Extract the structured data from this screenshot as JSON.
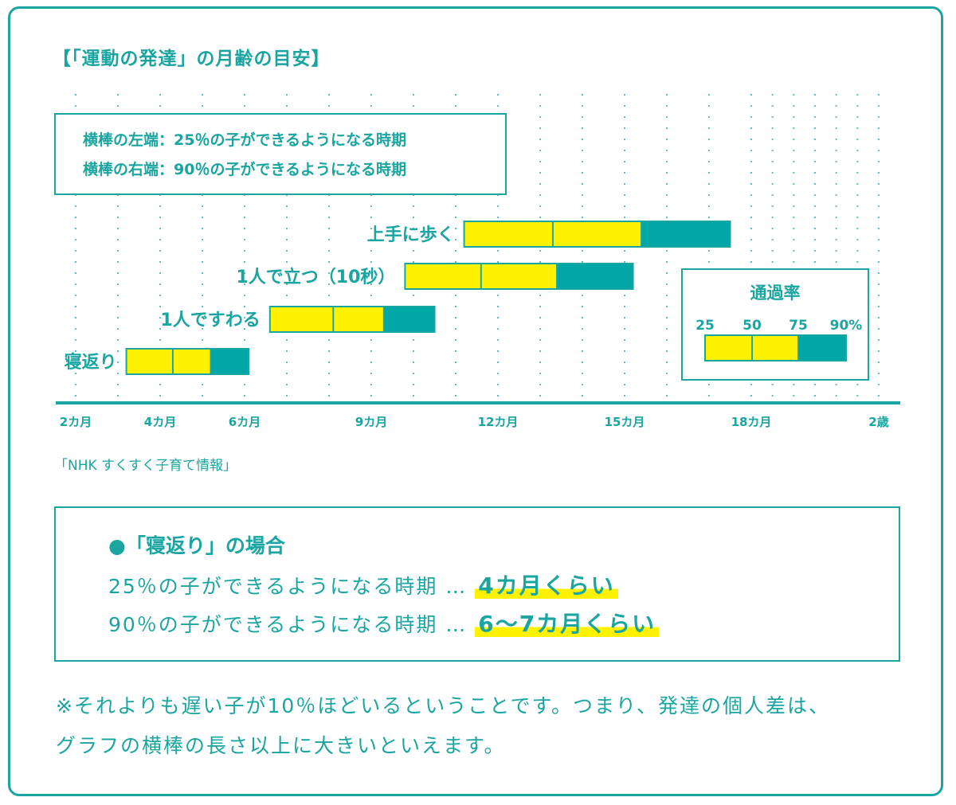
{
  "title": "【「運動の発達」の月齢の目安】",
  "explain_box": {
    "line1": "横棒の左端：25％の子ができるようになる時期",
    "line2": "横棒の右端：90％の子ができるようになる時期"
  },
  "source": "「NHK すくすく子育て情報」",
  "example": {
    "heading": "●「寝返り」の場合",
    "line1_text": "25％の子ができるようになる時期 …",
    "line1_value": "4カ月くらい",
    "line2_text": "90％の子ができるようになる時期 …",
    "line2_value": "6〜7カ月くらい"
  },
  "note_lines": [
    "※それよりも遅い子が10％ほどいるということです。つまり、発達の個人差は、",
    "グラフの横棒の長さ以上に大きいといえます。"
  ],
  "colors": {
    "teal": "#1aa5a0",
    "bar_teal": "#00a7a4",
    "yellow": "#fff200"
  },
  "chart_data": {
    "type": "bar",
    "orientation": "horizontal-range",
    "unit": "months",
    "xlim": [
      2,
      24
    ],
    "x_scale_note": "months 18–24 drawn at half width",
    "ticks": [
      {
        "value": 2,
        "label": "2カ月"
      },
      {
        "value": 4,
        "label": "4カ月"
      },
      {
        "value": 6,
        "label": "6カ月"
      },
      {
        "value": 9,
        "label": "9カ月"
      },
      {
        "value": 12,
        "label": "12カ月"
      },
      {
        "value": 15,
        "label": "15カ月"
      },
      {
        "value": 18,
        "label": "18カ月"
      },
      {
        "value": 24,
        "label": "2歳"
      }
    ],
    "grid": "dotted vertical, monthly",
    "categories": [
      "上手に歩く",
      "1人で立つ（10秒）",
      "1人ですわる",
      "寝返り"
    ],
    "series": [
      {
        "name": "25",
        "values": [
          11.2,
          9.8,
          6.6,
          3.2
        ]
      },
      {
        "name": "50",
        "values": [
          13.3,
          11.6,
          8.1,
          4.3
        ]
      },
      {
        "name": "75",
        "values": [
          15.4,
          13.4,
          9.3,
          5.2
        ]
      },
      {
        "name": "90%",
        "values": [
          17.5,
          15.2,
          10.5,
          6.1
        ]
      }
    ],
    "legend": {
      "title": "通過率",
      "labels": [
        "25",
        "50",
        "75",
        "90%"
      ],
      "placement": "right"
    }
  }
}
